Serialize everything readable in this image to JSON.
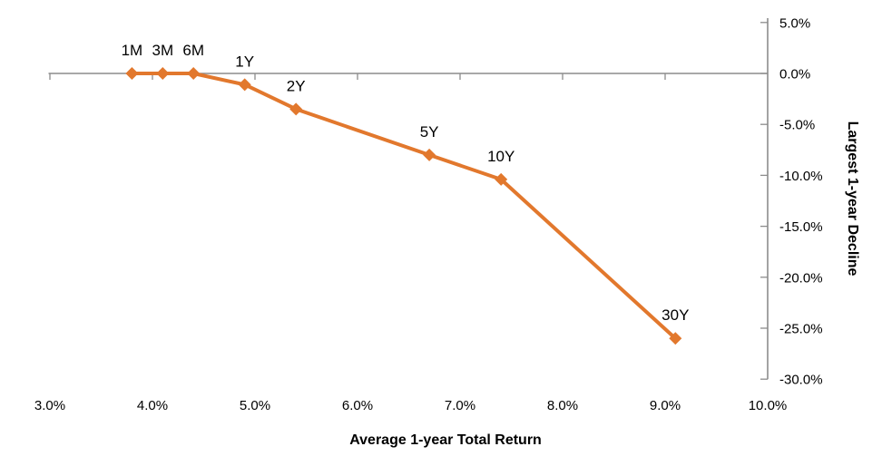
{
  "chart_data": {
    "type": "line",
    "title": "",
    "xlabel": "Average 1-year Total Return",
    "ylabel": "Largest 1-year Decline",
    "xlim": [
      3,
      10
    ],
    "ylim": [
      -30,
      5
    ],
    "x_tick_values": [
      3,
      4,
      5,
      6,
      7,
      8,
      9,
      10
    ],
    "x_tick_labels": [
      "3.0%",
      "4.0%",
      "5.0%",
      "6.0%",
      "7.0%",
      "8.0%",
      "9.0%",
      "10.0%"
    ],
    "y_tick_values": [
      5,
      0,
      -5,
      -10,
      -15,
      -20,
      -25,
      -30
    ],
    "y_tick_labels": [
      "5.0%",
      "0.0%",
      "-5.0%",
      "-10.0%",
      "-15.0%",
      "-20.0%",
      "-25.0%",
      "-30.0%"
    ],
    "grid": false,
    "legend_position": "none",
    "y_axis_side": "right",
    "x_labels_position": "bottom",
    "marker": "diamond",
    "line_color": "#E2782D",
    "axis_color": "#8C8C8C",
    "text_color": "#000000",
    "points": [
      {
        "label": "1M",
        "x": 3.8,
        "y": 0.0
      },
      {
        "label": "3M",
        "x": 4.1,
        "y": 0.0
      },
      {
        "label": "6M",
        "x": 4.4,
        "y": 0.0
      },
      {
        "label": "1Y",
        "x": 4.9,
        "y": -1.1
      },
      {
        "label": "2Y",
        "x": 5.4,
        "y": -3.5
      },
      {
        "label": "5Y",
        "x": 6.7,
        "y": -8.0
      },
      {
        "label": "10Y",
        "x": 7.4,
        "y": -10.4
      },
      {
        "label": "30Y",
        "x": 9.1,
        "y": -26.0
      }
    ]
  }
}
